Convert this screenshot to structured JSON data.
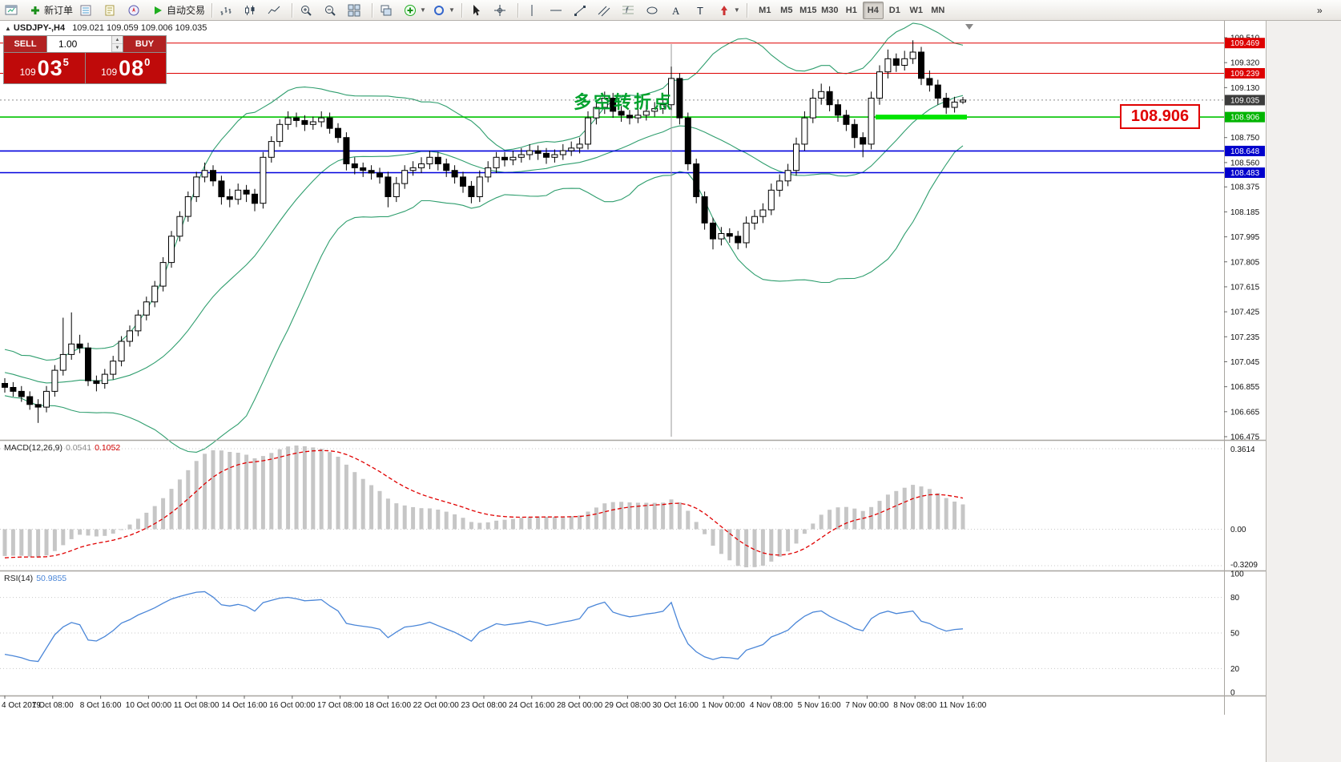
{
  "title": {
    "symbol": "USDJPY-,H4",
    "ohlc": "109.021 109.059 109.006 109.035"
  },
  "trade_panel": {
    "sell_label": "SELL",
    "buy_label": "BUY",
    "lot": "1.00",
    "sell_price": {
      "prefix": "109",
      "big": "03",
      "sup": "5"
    },
    "buy_price": {
      "prefix": "109",
      "big": "08",
      "sup": "0"
    }
  },
  "annotation": {
    "text": "多空转折点",
    "color": "#00a12c"
  },
  "price_label_box": {
    "text": "108.906"
  },
  "toolbar": {
    "groups": [
      {
        "items": [
          {
            "name": "offline-charts-button",
            "icon": "window"
          },
          {
            "name": "new-order-button",
            "icon": "plus",
            "label": "新订单"
          },
          {
            "name": "market-watch-button",
            "icon": "list"
          },
          {
            "name": "data-window-button",
            "icon": "doc"
          },
          {
            "name": "navigator-button",
            "icon": "compass"
          },
          {
            "name": "autotrading-button",
            "icon": "play",
            "label": "自动交易"
          }
        ]
      },
      {
        "items": [
          {
            "name": "bar-chart-button",
            "icon": "bars"
          },
          {
            "name": "candlestick-chart-button",
            "icon": "candles"
          },
          {
            "name": "line-chart-button",
            "icon": "linechart"
          }
        ]
      },
      {
        "items": [
          {
            "name": "zoom-in-button",
            "icon": "zoomin"
          },
          {
            "name": "zoom-out-button",
            "icon": "zoomout"
          },
          {
            "name": "tile-windows-button",
            "icon": "tile"
          }
        ]
      },
      {
        "items": [
          {
            "name": "auto-arrange-button",
            "icon": "cascade"
          },
          {
            "name": "indicators-button",
            "icon": "indicators",
            "caret": true
          },
          {
            "name": "objects-button",
            "icon": "objects",
            "caret": true
          }
        ]
      },
      {
        "items": [
          {
            "name": "cursor-button",
            "icon": "cursor"
          },
          {
            "name": "crosshair-button",
            "icon": "crosshair"
          }
        ]
      },
      {
        "items": [
          {
            "name": "vertical-line-button",
            "icon": "vline"
          },
          {
            "name": "horizontal-line-button",
            "icon": "hline"
          },
          {
            "name": "trendline-button",
            "icon": "trend"
          },
          {
            "name": "channel-button",
            "icon": "channel"
          },
          {
            "name": "fibonacci-button",
            "icon": "fibo"
          },
          {
            "name": "equidistant-button",
            "icon": "shapes"
          },
          {
            "name": "text-button",
            "icon": "textA"
          },
          {
            "name": "text-label-button",
            "icon": "labelT"
          },
          {
            "name": "arrows-button",
            "icon": "arrows",
            "caret": true
          }
        ]
      }
    ],
    "timeframes": [
      {
        "label": "M1"
      },
      {
        "label": "M5"
      },
      {
        "label": "M15"
      },
      {
        "label": "M30"
      },
      {
        "label": "H1"
      },
      {
        "label": "H4",
        "active": true
      },
      {
        "label": "D1"
      },
      {
        "label": "W1"
      },
      {
        "label": "MN"
      }
    ],
    "overflow_glyph": "»"
  },
  "chart_data": {
    "type": "candlestick",
    "symbol": "USDJPY",
    "timeframe": "H4",
    "price_axis": {
      "min": 106.475,
      "max": 109.51,
      "labels": [
        "109.510",
        "109.320",
        "109.130",
        "108.750",
        "108.560",
        "108.375",
        "108.185",
        "107.995",
        "107.805",
        "107.615",
        "107.425",
        "107.235",
        "107.045",
        "106.855",
        "106.665",
        "106.475"
      ],
      "label_values": [
        109.51,
        109.32,
        109.13,
        108.75,
        108.56,
        108.375,
        108.185,
        107.995,
        107.805,
        107.615,
        107.425,
        107.235,
        107.045,
        106.855,
        106.665,
        106.475
      ]
    },
    "badges": [
      {
        "text": "109.469",
        "price": 109.469,
        "bg": "#dd0000"
      },
      {
        "text": "109.239",
        "price": 109.239,
        "bg": "#dd0000"
      },
      {
        "text": "109.035",
        "price": 109.035,
        "bg": "#3c3c3c"
      },
      {
        "text": "108.906",
        "price": 108.906,
        "bg": "#00b400"
      },
      {
        "text": "108.648",
        "price": 108.648,
        "bg": "#0000cc"
      },
      {
        "text": "108.483",
        "price": 108.483,
        "bg": "#0000cc"
      }
    ],
    "hlines": [
      {
        "name": "resistance-line-1",
        "price": 109.469,
        "color": "#dd0000",
        "width": 1
      },
      {
        "name": "resistance-line-2",
        "price": 109.239,
        "color": "#dd0000",
        "width": 1
      },
      {
        "name": "current-price-line",
        "price": 109.035,
        "color": "#8a8a8a",
        "width": 1,
        "dash": "2 3"
      },
      {
        "name": "pivot-line",
        "price": 108.906,
        "color": "#00c300",
        "width": 1.6
      },
      {
        "name": "support-line-1",
        "price": 108.648,
        "color": "#0000dd",
        "width": 1.6
      },
      {
        "name": "support-line-2",
        "price": 108.483,
        "color": "#0000dd",
        "width": 1.6
      }
    ],
    "thick_segment": {
      "price": 108.906,
      "from_index": 105,
      "to_index": 115,
      "color": "#00e400",
      "width": 6
    },
    "vline_index": 80,
    "bollinger": {
      "period": 20,
      "deviation": 2,
      "color": "#2f9e6e"
    },
    "macd": {
      "name": "MACD(12,26,9)",
      "value_main": "0.0541",
      "value_signal": "0.1052",
      "axis": [
        "0.3614",
        "0.00",
        "-0.3209"
      ]
    },
    "rsi": {
      "name": "RSI(14)",
      "value": "50.9855",
      "axis": [
        100,
        80,
        50,
        20,
        0
      ],
      "levels": [
        80,
        50,
        20
      ]
    },
    "time_labels": [
      "4 Oct 2019",
      "7 Oct 08:00",
      "8 Oct 16:00",
      "10 Oct 00:00",
      "11 Oct 08:00",
      "14 Oct 16:00",
      "16 Oct 00:00",
      "17 Oct 08:00",
      "18 Oct 16:00",
      "22 Oct 00:00",
      "23 Oct 08:00",
      "24 Oct 16:00",
      "28 Oct 00:00",
      "29 Oct 08:00",
      "30 Oct 16:00",
      "1 Nov 00:00",
      "4 Nov 08:00",
      "5 Nov 16:00",
      "7 Nov 00:00",
      "8 Nov 08:00",
      "11 Nov 16:00"
    ],
    "pre_closes": [
      107.6,
      107.52,
      107.45,
      107.5,
      107.42,
      107.35,
      107.4,
      107.3,
      107.22,
      107.28,
      107.18,
      107.1,
      107.15,
      107.05,
      107.1,
      107.02,
      106.95,
      107.0,
      107.05,
      106.98,
      106.92,
      106.96,
      106.9,
      106.94,
      106.88,
      106.92,
      106.86,
      106.9,
      106.85,
      106.88
    ],
    "candles": [
      [
        106.88,
        106.92,
        106.81,
        106.85
      ],
      [
        106.85,
        106.89,
        106.78,
        106.82
      ],
      [
        106.82,
        106.86,
        106.74,
        106.78
      ],
      [
        106.78,
        106.82,
        106.68,
        106.72
      ],
      [
        106.72,
        106.76,
        106.58,
        106.7
      ],
      [
        106.7,
        106.86,
        106.66,
        106.82
      ],
      [
        106.82,
        107.02,
        106.78,
        106.98
      ],
      [
        106.98,
        107.38,
        106.94,
        107.1
      ],
      [
        107.1,
        107.42,
        107.06,
        107.18
      ],
      [
        107.18,
        107.25,
        107.11,
        107.15
      ],
      [
        107.15,
        107.19,
        106.86,
        106.9
      ],
      [
        106.9,
        106.94,
        106.82,
        106.88
      ],
      [
        106.88,
        106.99,
        106.84,
        106.95
      ],
      [
        106.95,
        107.09,
        106.91,
        107.05
      ],
      [
        107.05,
        107.24,
        107.01,
        107.2
      ],
      [
        107.2,
        107.32,
        107.16,
        107.28
      ],
      [
        107.28,
        107.44,
        107.24,
        107.4
      ],
      [
        107.4,
        107.54,
        107.36,
        107.5
      ],
      [
        107.5,
        107.66,
        107.46,
        107.62
      ],
      [
        107.62,
        107.84,
        107.58,
        107.8
      ],
      [
        107.8,
        108.04,
        107.76,
        108.0
      ],
      [
        108.0,
        108.19,
        107.96,
        108.15
      ],
      [
        108.15,
        108.34,
        108.11,
        108.3
      ],
      [
        108.3,
        108.49,
        108.26,
        108.45
      ],
      [
        108.45,
        108.56,
        108.41,
        108.5
      ],
      [
        108.5,
        108.54,
        108.38,
        108.42
      ],
      [
        108.42,
        108.46,
        108.24,
        108.3
      ],
      [
        108.3,
        108.36,
        108.22,
        108.28
      ],
      [
        108.28,
        108.4,
        108.24,
        108.35
      ],
      [
        108.35,
        108.39,
        108.26,
        108.32
      ],
      [
        108.32,
        108.36,
        108.19,
        108.25
      ],
      [
        108.25,
        108.64,
        108.21,
        108.6
      ],
      [
        108.6,
        108.76,
        108.56,
        108.72
      ],
      [
        108.72,
        108.89,
        108.68,
        108.85
      ],
      [
        108.85,
        108.95,
        108.81,
        108.9
      ],
      [
        108.9,
        108.94,
        108.83,
        108.88
      ],
      [
        108.88,
        108.92,
        108.8,
        108.85
      ],
      [
        108.85,
        108.91,
        108.81,
        108.87
      ],
      [
        108.87,
        108.95,
        108.83,
        108.9
      ],
      [
        108.9,
        108.94,
        108.78,
        108.82
      ],
      [
        108.82,
        108.86,
        108.71,
        108.75
      ],
      [
        108.75,
        108.79,
        108.5,
        108.55
      ],
      [
        108.55,
        108.6,
        108.47,
        108.52
      ],
      [
        108.52,
        108.56,
        108.45,
        108.5
      ],
      [
        108.5,
        108.54,
        108.43,
        108.48
      ],
      [
        108.48,
        108.52,
        108.4,
        108.45
      ],
      [
        108.45,
        108.49,
        108.22,
        108.3
      ],
      [
        108.3,
        108.45,
        108.26,
        108.4
      ],
      [
        108.4,
        108.54,
        108.36,
        108.5
      ],
      [
        108.5,
        108.57,
        108.46,
        108.52
      ],
      [
        108.52,
        108.6,
        108.48,
        108.55
      ],
      [
        108.55,
        108.65,
        108.51,
        108.6
      ],
      [
        108.6,
        108.64,
        108.5,
        108.55
      ],
      [
        108.55,
        108.59,
        108.45,
        108.5
      ],
      [
        108.5,
        108.54,
        108.4,
        108.45
      ],
      [
        108.45,
        108.49,
        108.33,
        108.38
      ],
      [
        108.38,
        108.42,
        108.25,
        108.3
      ],
      [
        108.3,
        108.5,
        108.26,
        108.45
      ],
      [
        108.45,
        108.57,
        108.41,
        108.52
      ],
      [
        108.52,
        108.64,
        108.48,
        108.6
      ],
      [
        108.6,
        108.64,
        108.53,
        108.58
      ],
      [
        108.58,
        108.65,
        108.54,
        108.6
      ],
      [
        108.6,
        108.67,
        108.56,
        108.62
      ],
      [
        108.62,
        108.7,
        108.58,
        108.65
      ],
      [
        108.65,
        108.69,
        108.58,
        108.63
      ],
      [
        108.63,
        108.67,
        108.55,
        108.6
      ],
      [
        108.6,
        108.66,
        108.56,
        108.62
      ],
      [
        108.62,
        108.7,
        108.58,
        108.65
      ],
      [
        108.65,
        108.72,
        108.61,
        108.67
      ],
      [
        108.67,
        108.75,
        108.63,
        108.7
      ],
      [
        108.7,
        108.95,
        108.66,
        108.9
      ],
      [
        108.9,
        109.03,
        108.85,
        108.98
      ],
      [
        108.98,
        109.1,
        108.93,
        109.05
      ],
      [
        109.05,
        109.09,
        108.9,
        108.95
      ],
      [
        108.95,
        108.99,
        108.87,
        108.92
      ],
      [
        108.92,
        108.96,
        108.85,
        108.9
      ],
      [
        108.9,
        108.97,
        108.86,
        108.92
      ],
      [
        108.92,
        109.0,
        108.88,
        108.95
      ],
      [
        108.95,
        109.02,
        108.91,
        108.97
      ],
      [
        108.97,
        109.05,
        108.93,
        109.0
      ],
      [
        109.0,
        109.29,
        108.96,
        109.2
      ],
      [
        109.2,
        109.24,
        108.85,
        108.9
      ],
      [
        108.9,
        108.94,
        108.5,
        108.55
      ],
      [
        108.55,
        108.59,
        108.25,
        108.3
      ],
      [
        108.3,
        108.34,
        108.05,
        108.1
      ],
      [
        108.1,
        108.14,
        107.9,
        107.98
      ],
      [
        107.98,
        108.07,
        107.93,
        108.02
      ],
      [
        108.02,
        108.06,
        107.95,
        108.0
      ],
      [
        108.0,
        108.04,
        107.9,
        107.95
      ],
      [
        107.95,
        108.15,
        107.91,
        108.1
      ],
      [
        108.1,
        108.2,
        108.05,
        108.15
      ],
      [
        108.15,
        108.25,
        108.1,
        108.2
      ],
      [
        108.2,
        108.4,
        108.16,
        108.35
      ],
      [
        108.35,
        108.47,
        108.3,
        108.42
      ],
      [
        108.42,
        108.55,
        108.38,
        108.5
      ],
      [
        108.5,
        108.75,
        108.46,
        108.7
      ],
      [
        108.7,
        108.95,
        108.65,
        108.9
      ],
      [
        108.9,
        109.12,
        108.86,
        109.05
      ],
      [
        109.05,
        109.16,
        109.0,
        109.1
      ],
      [
        109.1,
        109.14,
        108.95,
        109.0
      ],
      [
        109.0,
        109.04,
        108.87,
        108.92
      ],
      [
        108.92,
        108.96,
        108.8,
        108.85
      ],
      [
        108.85,
        108.89,
        108.67,
        108.75
      ],
      [
        108.75,
        108.79,
        108.6,
        108.7
      ],
      [
        108.7,
        109.1,
        108.66,
        109.05
      ],
      [
        109.05,
        109.3,
        109.0,
        109.25
      ],
      [
        109.25,
        109.42,
        109.2,
        109.35
      ],
      [
        109.35,
        109.39,
        109.25,
        109.3
      ],
      [
        109.3,
        109.41,
        109.26,
        109.35
      ],
      [
        109.35,
        109.49,
        109.31,
        109.4
      ],
      [
        109.4,
        109.44,
        109.15,
        109.2
      ],
      [
        109.2,
        109.26,
        109.1,
        109.15
      ],
      [
        109.15,
        109.19,
        109.0,
        109.05
      ],
      [
        109.05,
        109.09,
        108.93,
        108.98
      ],
      [
        108.98,
        109.06,
        108.94,
        109.02
      ],
      [
        109.021,
        109.059,
        109.006,
        109.035
      ]
    ]
  }
}
